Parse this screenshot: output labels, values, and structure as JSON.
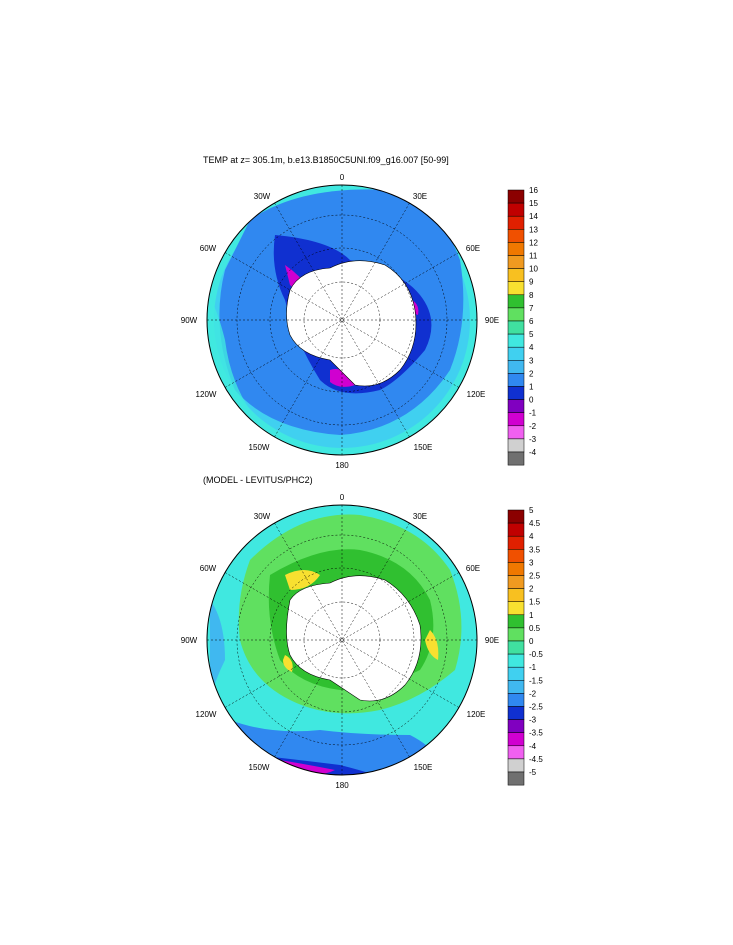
{
  "panel1": {
    "title": "TEMP at z= 305.1m, b.e13.B1850C5UNI.f09_g16.007 [50-99]",
    "lon_labels": [
      "0",
      "30E",
      "60E",
      "90E",
      "120E",
      "150E",
      "180",
      "150W",
      "120W",
      "90W",
      "60W",
      "30W"
    ],
    "colorbar": {
      "labels": [
        "16",
        "15",
        "14",
        "13",
        "12",
        "11",
        "10",
        "9",
        "8",
        "7",
        "6",
        "5",
        "4",
        "3",
        "2",
        "1",
        "0",
        "-1",
        "-2",
        "-3",
        "-4"
      ],
      "colors": [
        "#8b0000",
        "#c00000",
        "#e02000",
        "#f05000",
        "#f07800",
        "#f09a20",
        "#f8c020",
        "#f8e030",
        "#30c030",
        "#60e060",
        "#40e0a0",
        "#40e8e0",
        "#40d0f0",
        "#40b8f0",
        "#3088f0",
        "#1030d0",
        "#8000c0",
        "#d000d0",
        "#f060f0",
        "#d0d0d0",
        "#707070"
      ]
    }
  },
  "panel2": {
    "title": "(MODEL - LEVITUS/PHC2)",
    "lon_labels": [
      "0",
      "30E",
      "60E",
      "90E",
      "120E",
      "150E",
      "180",
      "150W",
      "120W",
      "90W",
      "60W",
      "30W"
    ],
    "colorbar": {
      "labels": [
        "5",
        "4.5",
        "4",
        "3.5",
        "3",
        "2.5",
        "2",
        "1.5",
        "1",
        "0.5",
        "0",
        "-0.5",
        "-1",
        "-1.5",
        "-2",
        "-2.5",
        "-3",
        "-3.5",
        "-4",
        "-4.5",
        "-5"
      ],
      "colors": [
        "#8b0000",
        "#c00000",
        "#e02000",
        "#f05000",
        "#f07800",
        "#f09a20",
        "#f8c020",
        "#f8e030",
        "#30c030",
        "#60e060",
        "#40e0a0",
        "#40e8e0",
        "#40d0f0",
        "#40b8f0",
        "#3088f0",
        "#1030d0",
        "#8000c0",
        "#d000d0",
        "#f060f0",
        "#d0d0d0",
        "#707070"
      ]
    }
  }
}
